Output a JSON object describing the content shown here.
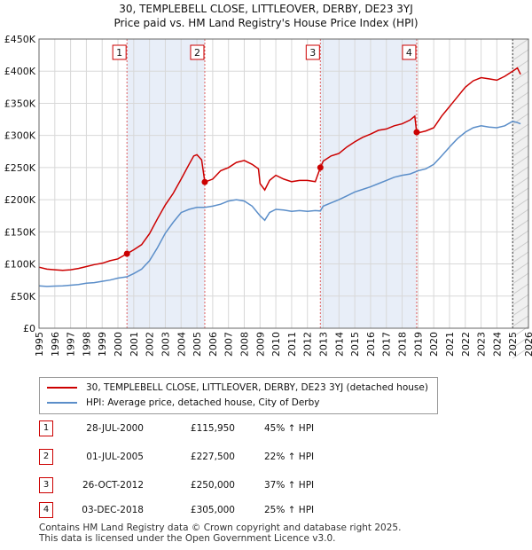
{
  "title": {
    "line1": "30, TEMPLEBELL CLOSE, LITTLEOVER, DERBY, DE23 3YJ",
    "line2": "Price paid vs. HM Land Registry's House Price Index (HPI)"
  },
  "colors": {
    "property": "#cc0000",
    "hpi": "#5b8ec9",
    "shade": "#e8eef8",
    "marker_line": "#e06060"
  },
  "legend": {
    "property_label": "30, TEMPLEBELL CLOSE, LITTLEOVER, DERBY, DE23 3YJ (detached house)",
    "hpi_label": "HPI: Average price, detached house, City of Derby"
  },
  "transactions": [
    {
      "num": "1",
      "date": "28-JUL-2000",
      "price": "£115,950",
      "hpi": "45% ↑ HPI"
    },
    {
      "num": "2",
      "date": "01-JUL-2005",
      "price": "£227,500",
      "hpi": "22% ↑ HPI"
    },
    {
      "num": "3",
      "date": "26-OCT-2012",
      "price": "£250,000",
      "hpi": "37% ↑ HPI"
    },
    {
      "num": "4",
      "date": "03-DEC-2018",
      "price": "£305,000",
      "hpi": "25% ↑ HPI"
    }
  ],
  "footer": {
    "line1": "Contains HM Land Registry data © Crown copyright and database right 2025.",
    "line2": "This data is licensed under the Open Government Licence v3.0."
  },
  "chart_data": {
    "type": "line",
    "title": "Price paid vs. HM Land Registry's House Price Index (HPI)",
    "xlabel": "",
    "ylabel": "",
    "xlim": [
      1995,
      2026
    ],
    "ylim": [
      0,
      450000
    ],
    "x_ticks": [
      1995,
      1996,
      1997,
      1998,
      1999,
      2000,
      2001,
      2002,
      2003,
      2004,
      2005,
      2006,
      2007,
      2008,
      2009,
      2010,
      2011,
      2012,
      2013,
      2014,
      2015,
      2016,
      2017,
      2018,
      2019,
      2020,
      2021,
      2022,
      2023,
      2024,
      2025,
      2026
    ],
    "y_ticks": [
      0,
      50000,
      100000,
      150000,
      200000,
      250000,
      300000,
      350000,
      400000,
      450000
    ],
    "y_tick_labels": [
      "£0",
      "£50K",
      "£100K",
      "£150K",
      "£200K",
      "£250K",
      "£300K",
      "£350K",
      "£400K",
      "£450K"
    ],
    "grid": true,
    "shaded_periods": [
      [
        2000.57,
        2005.5
      ],
      [
        2012.82,
        2018.92
      ]
    ],
    "forecast_from": 2025.0,
    "sales": [
      {
        "label": "1",
        "x": 2000.57,
        "y": 115950
      },
      {
        "label": "2",
        "x": 2005.5,
        "y": 227500
      },
      {
        "label": "3",
        "x": 2012.82,
        "y": 250000
      },
      {
        "label": "4",
        "x": 2018.92,
        "y": 305000
      }
    ],
    "series": [
      {
        "name": "30, TEMPLEBELL CLOSE, LITTLEOVER, DERBY, DE23 3YJ (detached house)",
        "x": [
          1995,
          1995.5,
          1996,
          1996.5,
          1997,
          1997.5,
          1998,
          1998.5,
          1999,
          1999.5,
          2000,
          2000.57,
          2001,
          2001.5,
          2002,
          2002.5,
          2003,
          2003.5,
          2004,
          2004.5,
          2004.8,
          2005,
          2005.3,
          2005.5,
          2006,
          2006.5,
          2007,
          2007.5,
          2008,
          2008.5,
          2008.9,
          2009,
          2009.3,
          2009.6,
          2010,
          2010.5,
          2011,
          2011.5,
          2012,
          2012.5,
          2012.82,
          2013,
          2013.5,
          2014,
          2014.5,
          2015,
          2015.5,
          2016,
          2016.5,
          2017,
          2017.5,
          2018,
          2018.5,
          2018.8,
          2018.92,
          2019,
          2019.5,
          2020,
          2020.5,
          2021,
          2021.5,
          2022,
          2022.5,
          2023,
          2023.5,
          2024,
          2024.5,
          2025,
          2025.3,
          2025.5
        ],
        "y": [
          95000,
          92000,
          91000,
          90000,
          91000,
          93000,
          96000,
          99000,
          101000,
          105000,
          108000,
          115950,
          122000,
          130000,
          147000,
          170000,
          192000,
          210000,
          232000,
          255000,
          268000,
          270000,
          262000,
          227500,
          232000,
          245000,
          250000,
          258000,
          261000,
          255000,
          248000,
          225000,
          215000,
          230000,
          238000,
          232000,
          228000,
          230000,
          230000,
          228000,
          250000,
          260000,
          268000,
          272000,
          282000,
          290000,
          297000,
          302000,
          308000,
          310000,
          315000,
          318000,
          324000,
          330000,
          305000,
          304000,
          307000,
          312000,
          330000,
          345000,
          360000,
          375000,
          385000,
          390000,
          388000,
          386000,
          392000,
          400000,
          405000,
          395000
        ]
      },
      {
        "name": "HPI: Average price, detached house, City of Derby",
        "x": [
          1995,
          1995.5,
          1996,
          1996.5,
          1997,
          1997.5,
          1998,
          1998.5,
          1999,
          1999.5,
          2000,
          2000.57,
          2001,
          2001.5,
          2002,
          2002.5,
          2003,
          2003.5,
          2004,
          2004.5,
          2005,
          2005.5,
          2006,
          2006.5,
          2007,
          2007.5,
          2008,
          2008.5,
          2009,
          2009.3,
          2009.6,
          2010,
          2010.5,
          2011,
          2011.5,
          2012,
          2012.5,
          2012.82,
          2013,
          2013.5,
          2014,
          2014.5,
          2015,
          2015.5,
          2016,
          2016.5,
          2017,
          2017.5,
          2018,
          2018.5,
          2018.92,
          2019,
          2019.5,
          2020,
          2020.5,
          2021,
          2021.5,
          2022,
          2022.5,
          2023,
          2023.5,
          2024,
          2024.5,
          2025,
          2025.3,
          2025.5
        ],
        "y": [
          66000,
          65000,
          65500,
          66000,
          67000,
          68000,
          70000,
          71000,
          73000,
          75000,
          78000,
          80000,
          85000,
          92000,
          105000,
          125000,
          148000,
          165000,
          180000,
          185000,
          188000,
          188000,
          190000,
          193000,
          198000,
          200000,
          198000,
          190000,
          175000,
          168000,
          180000,
          185000,
          184000,
          182000,
          183000,
          182000,
          183000,
          182500,
          190000,
          195000,
          200000,
          206000,
          212000,
          216000,
          220000,
          225000,
          230000,
          235000,
          238000,
          240000,
          244000,
          245000,
          248000,
          255000,
          268000,
          282000,
          295000,
          305000,
          312000,
          315000,
          313000,
          312000,
          315000,
          322000,
          320000,
          318000
        ]
      }
    ]
  }
}
